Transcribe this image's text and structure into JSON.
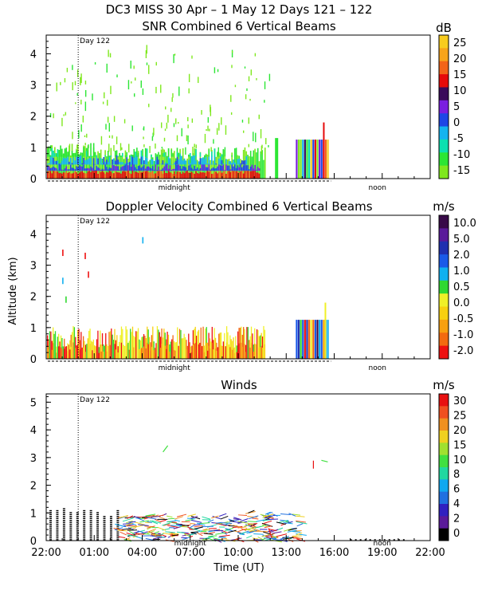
{
  "figure": {
    "title": "DC3 MISS  30 Apr –  1 May 12 Days 121 – 122",
    "xlabel": "Time (UT)",
    "xticks": [
      "22:00",
      "01:00",
      "04:00",
      "07:00",
      "10:00",
      "13:00",
      "16:00",
      "19:00",
      "22:00"
    ],
    "annotations": {
      "day": "Day 122",
      "midnight": "midnight",
      "noon": "noon"
    }
  },
  "colors": {
    "snr_scale": [
      "#7fe81e",
      "#2ce634",
      "#0ce0b0",
      "#14b4f0",
      "#1e46e6",
      "#7a1ee0",
      "#3a0a5a",
      "#e60a0a",
      "#f36418",
      "#f8a41a",
      "#f8cc1e"
    ],
    "doppler_scale": [
      "#ee1010",
      "#f36a10",
      "#f8a010",
      "#f8d010",
      "#f0f028",
      "#30d830",
      "#10b0f0",
      "#1a5ae8",
      "#2030b0",
      "#5a1a9a",
      "#380a48"
    ],
    "wind_scale": [
      "#000000",
      "#5a1a9a",
      "#3020c0",
      "#2070e0",
      "#10a8f0",
      "#20d8a0",
      "#40e040",
      "#a0e030",
      "#f0d020",
      "#f09020",
      "#f05020",
      "#e81010"
    ]
  },
  "chart_data": [
    {
      "type": "heatmap",
      "title": "SNR Combined 6 Vertical Beams",
      "xlabel": "",
      "ylabel": "",
      "x_range": [
        "22:00",
        "22:00"
      ],
      "ylim": [
        0,
        4.6
      ],
      "yticks": [
        0,
        1,
        2,
        3,
        4
      ],
      "colorbar": {
        "unit": "dB",
        "ticks": [
          "25",
          "20",
          "15",
          "10",
          "5",
          "0",
          "-5",
          "-10",
          "-15"
        ]
      },
      "layers": [
        {
          "from": 0.0,
          "to": 0.25,
          "color_index": 7,
          "end_hour": 13.3
        },
        {
          "from": 0.25,
          "to": 0.45,
          "color_index": 4,
          "end_hour": 13.3
        },
        {
          "from": 0.45,
          "to": 0.7,
          "color_index": 3,
          "end_hour": 12.5
        },
        {
          "from": 0.7,
          "to": 1.0,
          "color_index": 1,
          "end_hour": 12.0
        }
      ],
      "sparse_echo_max_altitude_km": 4.4
    },
    {
      "type": "heatmap",
      "title": "Doppler Velocity Combined 6 Vertical Beams",
      "xlabel": "",
      "ylabel": "Altitude (km)",
      "x_range": [
        "22:00",
        "22:00"
      ],
      "ylim": [
        0,
        4.6
      ],
      "yticks": [
        0,
        1,
        2,
        3,
        4
      ],
      "colorbar": {
        "unit": "m/s",
        "ticks": [
          "10.0",
          "5.0",
          "2.0",
          "1.0",
          "0.5",
          "0.0",
          "-0.5",
          "-1.0",
          "-2.0"
        ]
      },
      "echo_top_km": 1.0
    },
    {
      "type": "scatter",
      "title": "Winds",
      "xlabel": "Time (UT)",
      "ylabel": "",
      "x_range": [
        "22:00",
        "22:00"
      ],
      "ylim": [
        0,
        5.3
      ],
      "yticks": [
        0,
        1,
        2,
        3,
        4,
        5
      ],
      "colorbar": {
        "unit": "m/s",
        "ticks": [
          "30",
          "25",
          "20",
          "15",
          "10",
          "8",
          "6",
          "4",
          "2",
          "0"
        ]
      }
    }
  ]
}
